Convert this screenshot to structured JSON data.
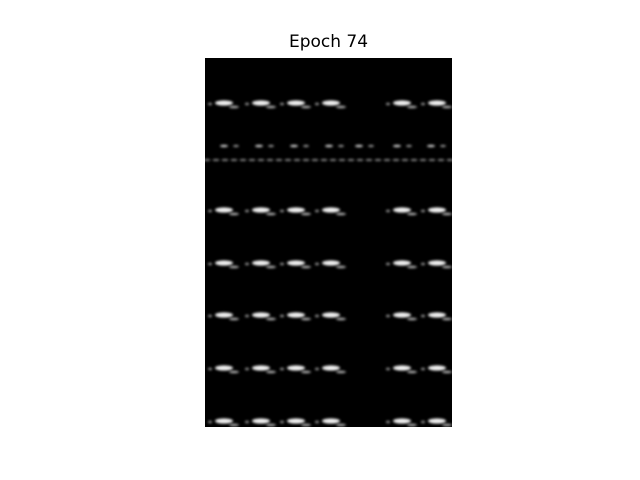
{
  "figure": {
    "title": "Epoch 74",
    "background_color": "#ffffff",
    "image_background_color": "#000000",
    "blob_color": "#ffffff"
  }
}
